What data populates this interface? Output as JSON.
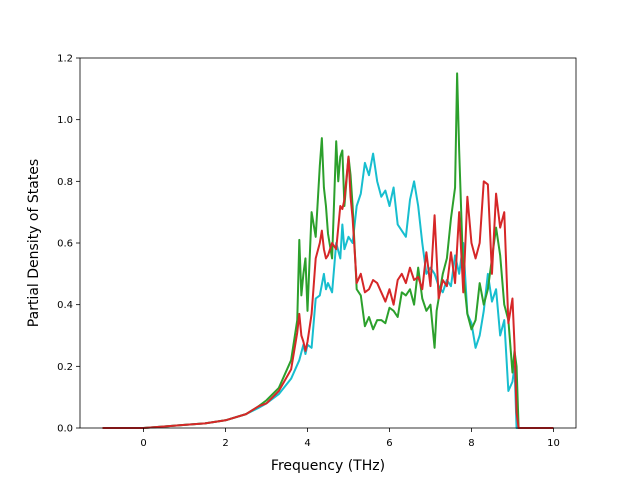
{
  "chart_data": {
    "type": "line",
    "title": "",
    "xlabel": "Frequency (THz)",
    "ylabel": "Partial Density of States",
    "xlim": [
      -1.55,
      10.55
    ],
    "ylim": [
      0.0,
      1.2
    ],
    "xticks": [
      "0",
      "2",
      "4",
      "6",
      "8",
      "10"
    ],
    "yticks": [
      "0.0",
      "0.2",
      "0.4",
      "0.6",
      "0.8",
      "1.0",
      "1.2"
    ],
    "grid": false,
    "legend": "none",
    "series": [
      {
        "color": "#17becf",
        "x": [
          -1.0,
          0.0,
          0.5,
          1.0,
          1.5,
          2.0,
          2.5,
          2.8,
          3.0,
          3.3,
          3.6,
          3.8,
          3.9,
          3.95,
          4.0,
          4.1,
          4.2,
          4.3,
          4.4,
          4.45,
          4.5,
          4.6,
          4.7,
          4.8,
          4.85,
          4.9,
          5.0,
          5.1,
          5.2,
          5.3,
          5.4,
          5.5,
          5.6,
          5.7,
          5.8,
          5.9,
          6.0,
          6.1,
          6.2,
          6.3,
          6.4,
          6.5,
          6.6,
          6.7,
          6.8,
          6.9,
          7.0,
          7.1,
          7.2,
          7.3,
          7.4,
          7.5,
          7.6,
          7.7,
          7.8,
          7.9,
          8.0,
          8.1,
          8.2,
          8.3,
          8.4,
          8.5,
          8.6,
          8.7,
          8.8,
          8.9,
          9.0,
          9.05,
          9.1,
          9.15,
          9.2,
          10.0
        ],
        "y": [
          0.0,
          0.0,
          0.005,
          0.01,
          0.015,
          0.025,
          0.045,
          0.065,
          0.08,
          0.11,
          0.16,
          0.22,
          0.27,
          0.24,
          0.27,
          0.26,
          0.42,
          0.43,
          0.5,
          0.45,
          0.47,
          0.44,
          0.6,
          0.55,
          0.66,
          0.58,
          0.62,
          0.6,
          0.72,
          0.76,
          0.86,
          0.82,
          0.89,
          0.8,
          0.75,
          0.77,
          0.72,
          0.78,
          0.66,
          0.64,
          0.62,
          0.74,
          0.8,
          0.72,
          0.6,
          0.5,
          0.52,
          0.5,
          0.46,
          0.44,
          0.48,
          0.46,
          0.56,
          0.5,
          0.6,
          0.37,
          0.34,
          0.26,
          0.3,
          0.38,
          0.5,
          0.41,
          0.45,
          0.3,
          0.35,
          0.12,
          0.15,
          0.2,
          0.0,
          0.0,
          0.0,
          0.0
        ]
      },
      {
        "color": "#2ca02c",
        "x": [
          -1.0,
          0.0,
          0.5,
          1.0,
          1.5,
          2.0,
          2.5,
          2.8,
          3.0,
          3.3,
          3.6,
          3.75,
          3.8,
          3.85,
          3.9,
          3.95,
          4.0,
          4.1,
          4.2,
          4.3,
          4.35,
          4.4,
          4.45,
          4.5,
          4.6,
          4.7,
          4.75,
          4.8,
          4.85,
          4.9,
          5.0,
          5.05,
          5.1,
          5.2,
          5.3,
          5.4,
          5.5,
          5.6,
          5.7,
          5.8,
          5.9,
          6.0,
          6.1,
          6.2,
          6.3,
          6.4,
          6.5,
          6.6,
          6.7,
          6.8,
          6.9,
          7.0,
          7.1,
          7.15,
          7.2,
          7.3,
          7.4,
          7.5,
          7.6,
          7.65,
          7.7,
          7.75,
          7.8,
          7.9,
          8.0,
          8.1,
          8.2,
          8.3,
          8.4,
          8.5,
          8.6,
          8.7,
          8.8,
          8.9,
          9.0,
          9.05,
          9.1,
          9.15,
          9.2,
          10.0
        ],
        "y": [
          0.0,
          0.0,
          0.005,
          0.01,
          0.015,
          0.025,
          0.045,
          0.07,
          0.09,
          0.13,
          0.22,
          0.35,
          0.61,
          0.43,
          0.5,
          0.55,
          0.38,
          0.7,
          0.62,
          0.85,
          0.94,
          0.78,
          0.72,
          0.63,
          0.55,
          0.93,
          0.8,
          0.88,
          0.9,
          0.72,
          0.88,
          0.82,
          0.72,
          0.45,
          0.43,
          0.33,
          0.36,
          0.32,
          0.35,
          0.35,
          0.34,
          0.39,
          0.38,
          0.36,
          0.44,
          0.43,
          0.45,
          0.4,
          0.52,
          0.42,
          0.38,
          0.4,
          0.26,
          0.38,
          0.42,
          0.5,
          0.55,
          0.68,
          0.78,
          1.15,
          0.9,
          0.7,
          0.5,
          0.37,
          0.32,
          0.35,
          0.47,
          0.4,
          0.45,
          0.55,
          0.65,
          0.56,
          0.4,
          0.35,
          0.18,
          0.25,
          0.2,
          0.0,
          0.0,
          0.0
        ]
      },
      {
        "color": "#d62728",
        "x": [
          -1.0,
          0.0,
          0.5,
          1.0,
          1.5,
          2.0,
          2.5,
          2.8,
          3.0,
          3.3,
          3.6,
          3.75,
          3.8,
          3.85,
          3.9,
          3.95,
          4.0,
          4.1,
          4.2,
          4.3,
          4.35,
          4.4,
          4.45,
          4.5,
          4.6,
          4.7,
          4.8,
          4.85,
          4.9,
          5.0,
          5.05,
          5.1,
          5.2,
          5.3,
          5.4,
          5.5,
          5.6,
          5.7,
          5.8,
          5.9,
          6.0,
          6.1,
          6.2,
          6.3,
          6.4,
          6.5,
          6.6,
          6.7,
          6.8,
          6.9,
          7.0,
          7.1,
          7.2,
          7.3,
          7.4,
          7.5,
          7.6,
          7.7,
          7.8,
          7.9,
          8.0,
          8.1,
          8.2,
          8.3,
          8.4,
          8.5,
          8.6,
          8.7,
          8.8,
          8.9,
          9.0,
          9.05,
          9.1,
          9.15,
          9.2,
          10.0
        ],
        "y": [
          0.0,
          0.0,
          0.005,
          0.01,
          0.015,
          0.025,
          0.045,
          0.07,
          0.08,
          0.12,
          0.19,
          0.31,
          0.37,
          0.3,
          0.28,
          0.25,
          0.28,
          0.37,
          0.55,
          0.6,
          0.64,
          0.58,
          0.55,
          0.56,
          0.6,
          0.58,
          0.72,
          0.71,
          0.74,
          0.88,
          0.75,
          0.68,
          0.47,
          0.5,
          0.44,
          0.45,
          0.48,
          0.47,
          0.44,
          0.41,
          0.45,
          0.4,
          0.48,
          0.5,
          0.47,
          0.52,
          0.48,
          0.49,
          0.45,
          0.57,
          0.46,
          0.69,
          0.42,
          0.48,
          0.46,
          0.57,
          0.47,
          0.7,
          0.44,
          0.75,
          0.6,
          0.55,
          0.6,
          0.8,
          0.79,
          0.5,
          0.76,
          0.65,
          0.7,
          0.34,
          0.42,
          0.27,
          0.05,
          0.0,
          0.0,
          0.0
        ]
      }
    ]
  }
}
